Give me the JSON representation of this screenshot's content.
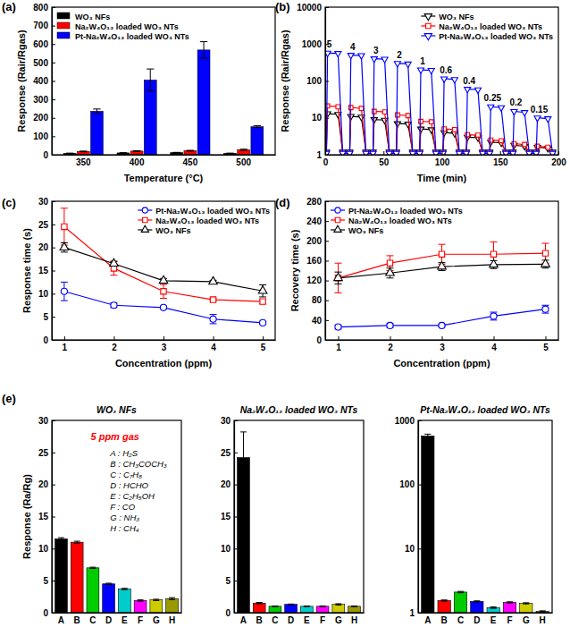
{
  "chart_data": [
    {
      "type": "bar",
      "panel_label": "(a)",
      "x_label": "Temperature (°C)",
      "y_label": "Response (Rair/Rgas)",
      "categories": [
        350,
        400,
        450,
        500
      ],
      "series": [
        {
          "name": "WO₃ NFs",
          "color": "#000000",
          "values": [
            8,
            10,
            12,
            8
          ],
          "errors": [
            1,
            1,
            1,
            1
          ]
        },
        {
          "name": "Na₂W₄O₁₃ loaded WO₃ NTs",
          "color": "#ff0000",
          "values": [
            18,
            20,
            22,
            27
          ],
          "errors": [
            2,
            2,
            2,
            3
          ]
        },
        {
          "name": "Pt-Na₂W₄O₁₃ loaded WO₃ NTs",
          "color": "#0000ff",
          "values": [
            236,
            405,
            568,
            152
          ],
          "errors": [
            12,
            60,
            45,
            5
          ]
        }
      ],
      "ylim": [
        0,
        800
      ],
      "yticks": [
        0,
        100,
        200,
        300,
        400,
        500,
        600,
        700,
        800
      ],
      "legend": "top-left"
    },
    {
      "type": "line",
      "panel_label": "(b)",
      "x_label": "Time (min)",
      "y_label": "Response (Rair/Rgas)",
      "log": "y",
      "x": [
        1,
        2,
        11,
        15,
        21,
        22,
        31,
        35,
        41,
        42,
        51,
        55,
        61,
        62,
        71,
        75,
        81,
        82,
        91,
        95,
        101,
        102,
        111,
        115,
        121,
        122,
        131,
        135,
        141,
        142,
        151,
        155,
        161,
        162,
        171,
        175,
        181,
        182,
        191,
        195
      ],
      "series": [
        {
          "name": "WO₃ NFs",
          "color": "#000000",
          "marker": "triangle-down",
          "values": [
            1.2,
            13,
            12.5,
            1.2,
            1.2,
            11,
            10.5,
            1.2,
            1.2,
            9,
            8.7,
            1.2,
            1.2,
            7,
            6.8,
            1.2,
            1.2,
            5,
            4.8,
            1.2,
            1.2,
            4,
            3.8,
            1.2,
            1.2,
            3,
            2.9,
            1.2,
            1.2,
            2.2,
            2.1,
            1.2,
            1.2,
            1.8,
            1.7,
            1.2,
            1.2,
            1.6,
            1.5,
            1.2
          ]
        },
        {
          "name": "Na₂W₄O₁₃ loaded WO₃ NTs",
          "color": "#ff0000",
          "marker": "square",
          "values": [
            1.1,
            21,
            20,
            1.1,
            1.1,
            19,
            18,
            1.1,
            1.1,
            15,
            14.5,
            1.1,
            1.1,
            12,
            11.5,
            1.1,
            1.1,
            8,
            7.8,
            1.1,
            1.1,
            5,
            4.8,
            1.1,
            1.1,
            3.5,
            3.4,
            1.1,
            1.1,
            2.5,
            2.4,
            1.1,
            1.1,
            2,
            1.9,
            1.1,
            1.1,
            1.7,
            1.6,
            1.1
          ]
        },
        {
          "name": "Pt-Na₂W₄O₁₃ loaded WO₃ NTs",
          "color": "#0000ff",
          "marker": "triangle-down",
          "values": [
            1.1,
            570,
            560,
            1.1,
            1.1,
            500,
            490,
            1.1,
            1.1,
            400,
            390,
            1.1,
            1.1,
            300,
            290,
            1.1,
            1.1,
            200,
            195,
            1.1,
            1.1,
            115,
            110,
            1.1,
            1.1,
            60,
            58,
            1.1,
            1.1,
            20,
            19,
            1.1,
            1.1,
            15,
            14,
            1.1,
            1.1,
            10,
            9.5,
            1.1
          ]
        }
      ],
      "xlim": [
        0,
        200
      ],
      "xticks": [
        0,
        50,
        100,
        150,
        200
      ],
      "ylim": [
        1,
        10000
      ],
      "yticks": [
        1,
        10,
        100,
        1000,
        10000
      ],
      "legend": "top-right",
      "annotations": [
        "5",
        "4",
        "3",
        "2",
        "1",
        "0.6",
        "0.4",
        "0.25",
        "0.2",
        "0.15"
      ]
    },
    {
      "type": "line",
      "panel_label": "(c)",
      "x_label": "Concentration (ppm)",
      "y_label": "Response time (s)",
      "x": [
        1,
        2,
        3,
        4,
        5
      ],
      "series": [
        {
          "name": "Pt-Na₂W₄O₁₃ loaded WO₃ NTs",
          "color": "#0000ff",
          "marker": "circle",
          "values": [
            10.5,
            7.5,
            7,
            4.5,
            3.7
          ],
          "errors": [
            2,
            0.5,
            0.3,
            1,
            0.3
          ]
        },
        {
          "name": "Na₂W₄O₁₃ loaded WO₃ NTs",
          "color": "#ff0000",
          "marker": "square",
          "values": [
            24.5,
            15.5,
            10.5,
            8.7,
            8.3
          ],
          "errors": [
            4,
            1.5,
            1.5,
            0.3,
            0.5
          ]
        },
        {
          "name": "WO₃ NFs",
          "color": "#000000",
          "marker": "triangle-up",
          "values": [
            20,
            16.5,
            12.8,
            12.6,
            10.6
          ],
          "errors": [
            1,
            0.5,
            0.5,
            0.3,
            1.3
          ]
        }
      ],
      "xlim": [
        0.75,
        5.25
      ],
      "xticks": [
        1,
        2,
        3,
        4,
        5
      ],
      "ylim": [
        0,
        30
      ],
      "yticks": [
        0,
        5,
        10,
        15,
        20,
        25,
        30
      ],
      "legend": "top-right"
    },
    {
      "type": "line",
      "panel_label": "(d)",
      "x_label": "Concentration (ppm)",
      "y_label": "Recovery time (s)",
      "x": [
        1,
        2,
        3,
        4,
        5
      ],
      "series": [
        {
          "name": "Pt-Na₂W₄O₁₃ loaded WO₃ NTs",
          "color": "#0000ff",
          "marker": "circle",
          "values": [
            26,
            29,
            29,
            48,
            62
          ],
          "errors": [
            4,
            4,
            2,
            8,
            8
          ]
        },
        {
          "name": "Na₂W₄O₁₃ loaded WO₃ NTs",
          "color": "#ff0000",
          "marker": "square",
          "values": [
            125,
            155,
            173,
            173,
            175
          ],
          "errors": [
            30,
            15,
            20,
            25,
            20
          ]
        },
        {
          "name": "WO₃ NFs",
          "color": "#000000",
          "marker": "triangle-up",
          "values": [
            125,
            135,
            148,
            152,
            153
          ],
          "errors": [
            12,
            10,
            8,
            8,
            8
          ]
        }
      ],
      "xlim": [
        0.75,
        5.25
      ],
      "xticks": [
        1,
        2,
        3,
        4,
        5
      ],
      "ylim": [
        0,
        280
      ],
      "yticks": [
        0,
        40,
        80,
        120,
        160,
        200,
        240,
        280
      ],
      "legend": "top-left"
    },
    {
      "type": "bar",
      "panel_label": "(e)",
      "title": "WO₃ NFs",
      "y_label": "Response (Ra/Rg)",
      "annotation": "5 ppm gas",
      "gas_key": [
        "A : H₂S",
        "B : CH₃COCH₃",
        "C : C₇H₈",
        "D : HCHO",
        "E : C₂H₅OH",
        "F : CO",
        "G : NH₃",
        "H : CH₄"
      ],
      "categories": [
        "A",
        "B",
        "C",
        "D",
        "E",
        "F",
        "G",
        "H"
      ],
      "values": [
        11.5,
        11.0,
        7.0,
        4.5,
        3.7,
        1.9,
        2.0,
        2.2
      ],
      "errors": [
        0.2,
        0.15,
        0.1,
        0.1,
        0.1,
        0.1,
        0.1,
        0.15
      ],
      "colors": [
        "#000000",
        "#ff0000",
        "#00cc00",
        "#0000ff",
        "#00cccc",
        "#ff00ff",
        "#cccc00",
        "#999900"
      ],
      "ylim": [
        0,
        30
      ],
      "yticks": [
        0,
        5,
        10,
        15,
        20,
        25,
        30
      ]
    },
    {
      "type": "bar",
      "title": "Na₂W₄O₁₃ loaded WO₃ NTs",
      "categories": [
        "A",
        "B",
        "C",
        "D",
        "E",
        "F",
        "G",
        "H"
      ],
      "values": [
        24.2,
        1.5,
        1.0,
        1.3,
        1.0,
        1.0,
        1.3,
        1.0
      ],
      "errors": [
        4,
        0.1,
        0.05,
        0.05,
        0.05,
        0.05,
        0.1,
        0.05
      ],
      "colors": [
        "#000000",
        "#ff0000",
        "#00cc00",
        "#0000ff",
        "#00cccc",
        "#ff00ff",
        "#cccc00",
        "#999900"
      ],
      "ylim": [
        0,
        30
      ],
      "yticks": [
        0,
        5,
        10,
        15,
        20,
        25,
        30
      ]
    },
    {
      "type": "bar",
      "title": "Pt-Na₂W₄O₁₃ loaded WO₃ NTs",
      "log": "y",
      "categories": [
        "A",
        "B",
        "C",
        "D",
        "E",
        "F",
        "G",
        "H"
      ],
      "values": [
        570,
        1.55,
        2.1,
        1.5,
        1.2,
        1.45,
        1.4,
        1.05
      ],
      "errors": [
        40,
        0.03,
        0.05,
        0.03,
        0.03,
        0.03,
        0.03,
        0.02
      ],
      "colors": [
        "#000000",
        "#ff0000",
        "#00cc00",
        "#0000ff",
        "#00cccc",
        "#ff00ff",
        "#cccc00",
        "#999900"
      ],
      "ylim": [
        1,
        1000
      ],
      "yticks": [
        1,
        10,
        100,
        1000
      ]
    }
  ]
}
